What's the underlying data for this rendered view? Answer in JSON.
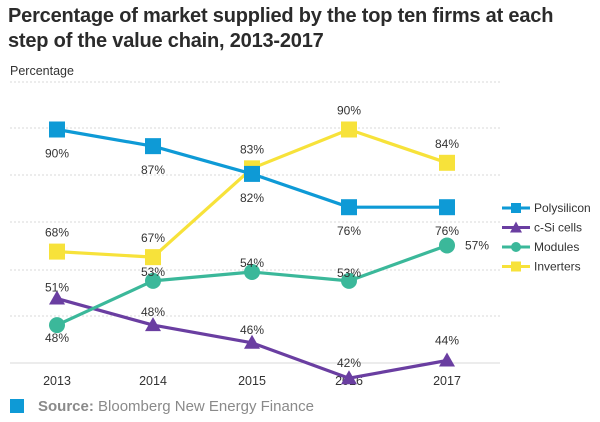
{
  "chart_data": {
    "type": "line",
    "title": "Percentage of market supplied by the top ten firms at each step of the value chain, 2013-2017",
    "ylabel": "Percentage",
    "xlabel": "",
    "categories": [
      "2013",
      "2014",
      "2015",
      "2016",
      "2017"
    ],
    "grid": true,
    "legend": "right",
    "series": [
      {
        "name": "Polysilicon",
        "values": [
          90,
          87,
          82,
          76,
          76
        ],
        "labels": [
          "90%",
          "87%",
          "82%",
          "76%",
          "76%"
        ],
        "color": "#0e9ad6",
        "marker": "square"
      },
      {
        "name": "c-Si cells",
        "values": [
          51,
          48,
          46,
          42,
          44
        ],
        "labels": [
          "51%",
          "48%",
          "46%",
          "42%",
          "44%"
        ],
        "color": "#6a3ea1",
        "marker": "triangle"
      },
      {
        "name": "Modules",
        "values": [
          48,
          53,
          54,
          53,
          57
        ],
        "labels": [
          "48%",
          "53%",
          "54%",
          "53%",
          "57%"
        ],
        "color": "#3bb89a",
        "marker": "circle"
      },
      {
        "name": "Inverters",
        "values": [
          68,
          67,
          83,
          90,
          84
        ],
        "labels": [
          "68%",
          "67%",
          "83%",
          "90%",
          "84%"
        ],
        "color": "#f7e23a",
        "marker": "square"
      }
    ]
  },
  "source": {
    "label": "Source:",
    "text": "Bloomberg New Energy Finance",
    "color": "#0e9ad6"
  }
}
